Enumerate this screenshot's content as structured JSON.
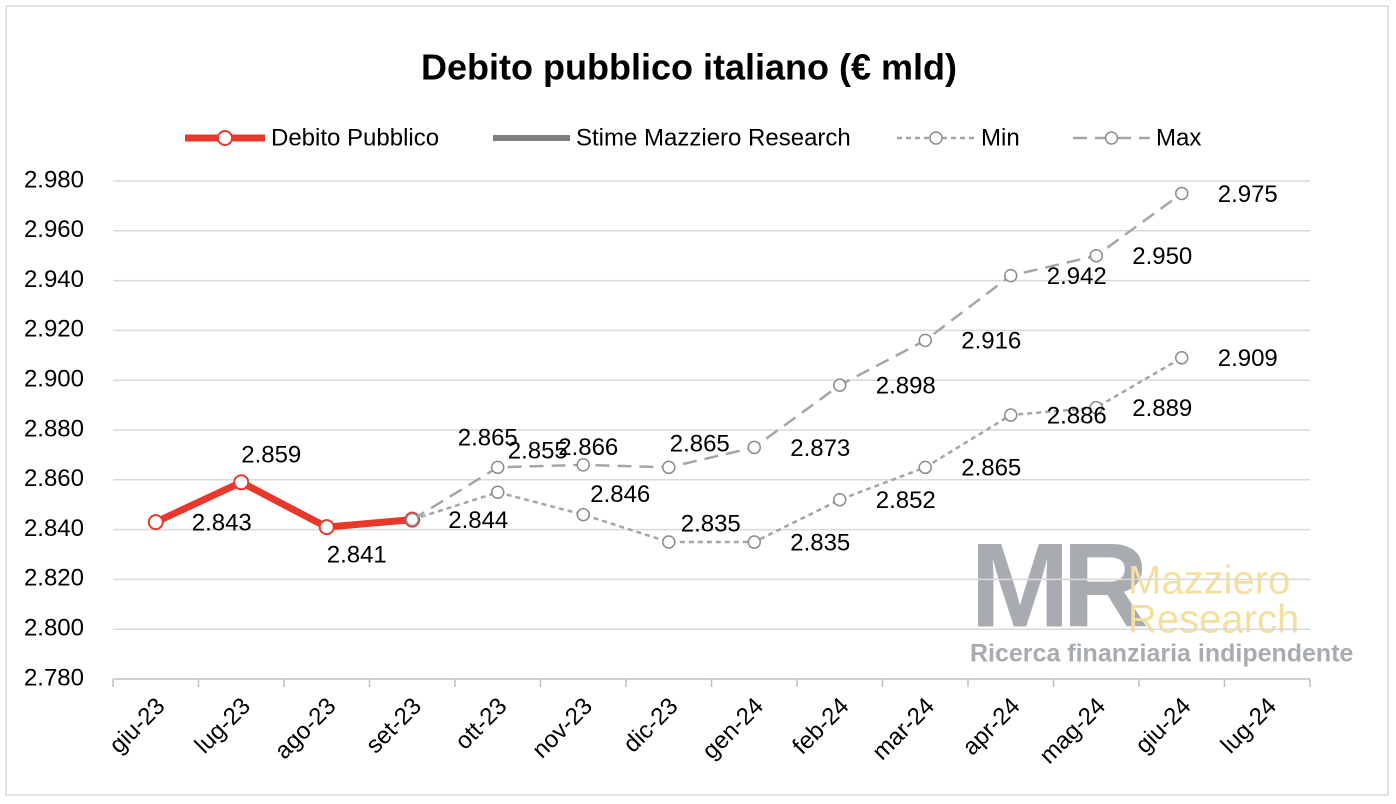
{
  "chart_data": {
    "type": "line",
    "title": "Debito pubblico italiano (€ mld)",
    "categories": [
      "giu-23",
      "lug-23",
      "ago-23",
      "set-23",
      "ott-23",
      "nov-23",
      "dic-23",
      "gen-24",
      "feb-24",
      "mar-24",
      "apr-24",
      "mag-24",
      "giu-24",
      "lug-24"
    ],
    "series": [
      {
        "name": "Debito Pubblico",
        "color": "#e8382c",
        "style": "solid",
        "marker": true,
        "values": [
          2843,
          2859,
          2841,
          2844,
          null,
          null,
          null,
          null,
          null,
          null,
          null,
          null,
          null,
          null
        ],
        "value_labels": [
          "2.843",
          "2.859",
          "2.841",
          "2.844",
          null,
          null,
          null,
          null,
          null,
          null,
          null,
          null,
          null,
          null
        ]
      },
      {
        "name": "Stime Mazziero Research",
        "color": "#7f7f7f",
        "style": "solid",
        "marker": false,
        "values": [
          null,
          null,
          null,
          null,
          null,
          null,
          null,
          null,
          null,
          null,
          null,
          null,
          null,
          null
        ]
      },
      {
        "name": "Min",
        "color": "#a6a6a6",
        "style": "short-dash",
        "marker": true,
        "values": [
          null,
          null,
          null,
          2844,
          2855,
          2846,
          2835,
          2835,
          2852,
          2865,
          2886,
          2889,
          2909,
          null
        ],
        "value_labels": [
          null,
          null,
          null,
          null,
          "2.855",
          "2.846",
          "2.835",
          "2.835",
          "2.852",
          "2.865",
          "2.886",
          "2.889",
          "2.909",
          null
        ]
      },
      {
        "name": "Max",
        "color": "#a6a6a6",
        "style": "long-dash",
        "marker": true,
        "values": [
          null,
          null,
          null,
          2844,
          2865,
          2866,
          2865,
          2873,
          2898,
          2916,
          2942,
          2950,
          2975,
          null
        ],
        "value_labels": [
          null,
          null,
          null,
          null,
          "2.865",
          "2.866",
          "2.865",
          "2.873",
          "2.898",
          "2.916",
          "2.942",
          "2.950",
          "2.975",
          null
        ]
      }
    ],
    "ylim": [
      2780,
      2980
    ],
    "yticks": [
      {
        "value": 2780,
        "label": "2.780"
      },
      {
        "value": 2800,
        "label": "2.800"
      },
      {
        "value": 2820,
        "label": "2.820"
      },
      {
        "value": 2840,
        "label": "2.840"
      },
      {
        "value": 2860,
        "label": "2.860"
      },
      {
        "value": 2880,
        "label": "2.880"
      },
      {
        "value": 2900,
        "label": "2.900"
      },
      {
        "value": 2920,
        "label": "2.920"
      },
      {
        "value": 2940,
        "label": "2.940"
      },
      {
        "value": 2960,
        "label": "2.960"
      },
      {
        "value": 2980,
        "label": "2.980"
      }
    ],
    "grid": true,
    "legend": "top"
  },
  "logo": {
    "mark": "MR",
    "line1": "Mazziero",
    "line2": "Research",
    "tagline": "Ricerca finanziaria indipendente"
  }
}
